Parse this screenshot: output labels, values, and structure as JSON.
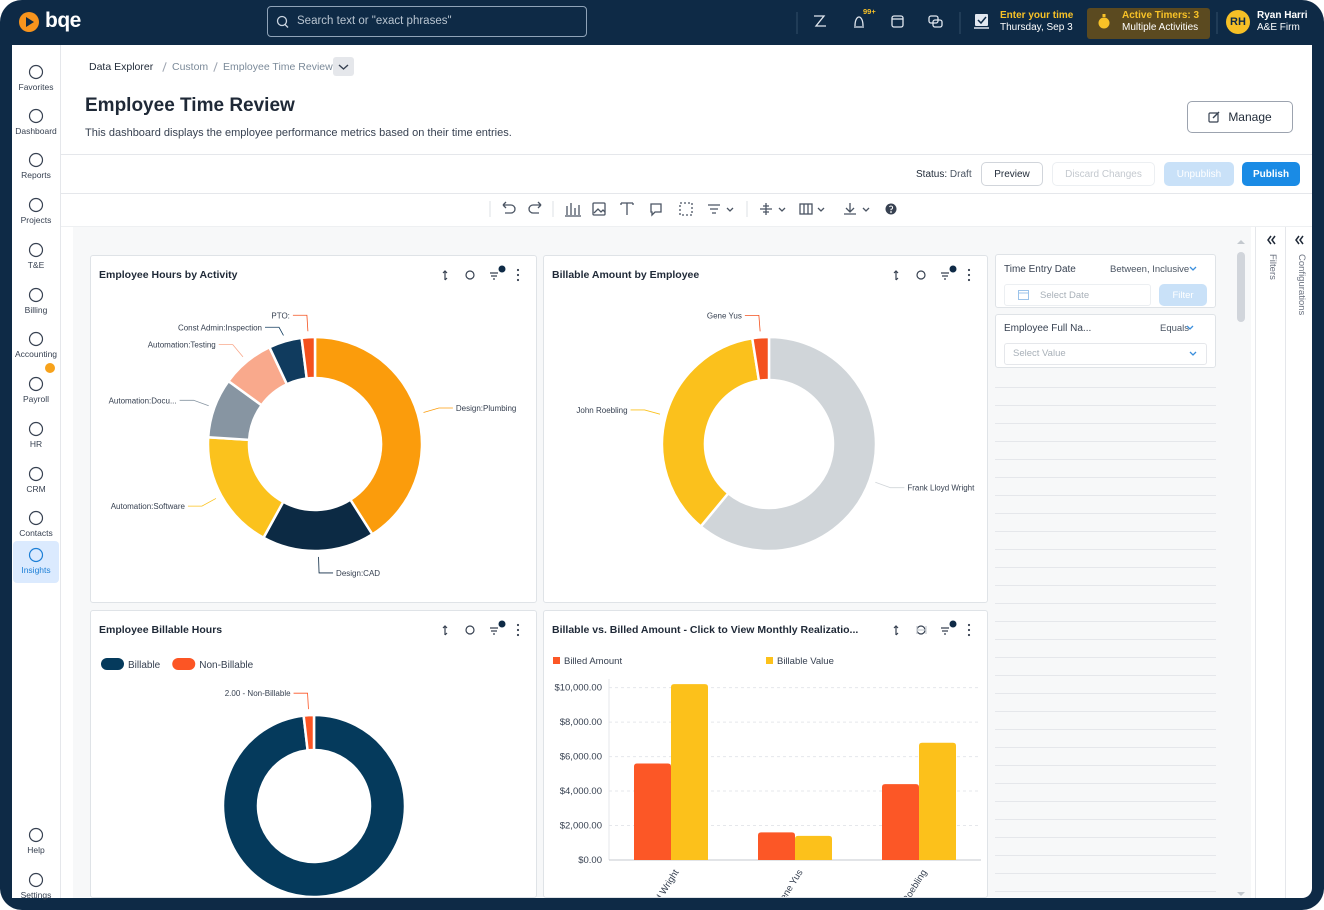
{
  "header": {
    "logo": "bqe",
    "search_placeholder": "Search text or \"exact phrases\"",
    "notification_badge": "99+",
    "time_entry": "Enter your time",
    "date": "Thursday, Sep 3",
    "timers": "Active Timers: 3",
    "timers_detail": "Multiple Activities",
    "avatar": "RH",
    "user_name": "Ryan Harri",
    "firm": "A&E Firm"
  },
  "sidebar": {
    "items": [
      "Favorites",
      "Dashboard",
      "Reports",
      "Projects",
      "T&E",
      "Billing",
      "Accounting",
      "Payroll",
      "HR",
      "CRM",
      "Contacts",
      "Insights"
    ],
    "bottom_items": [
      "Help",
      "Settings"
    ],
    "active": "Insights"
  },
  "breadcrumb": [
    "Data Explorer",
    "Custom",
    "Employee Time Review"
  ],
  "page": {
    "title": "Employee Time Review",
    "description": "This dashboard displays the employee performance metrics based on their time entries.",
    "manage": "Manage"
  },
  "status_bar": {
    "status_label": "Status:",
    "status": "Draft",
    "preview": "Preview",
    "discard": "Discard Changes",
    "unpublish": "Unpublish",
    "publish": "Publish"
  },
  "filters": [
    {
      "label": "Time Entry Date",
      "operator": "Between, Inclusive",
      "placeholder": "Select Date",
      "button": "Filter"
    },
    {
      "label": "Employee Full Na...",
      "operator": "Equals",
      "placeholder": "Select Value"
    }
  ],
  "side_tabs": [
    "Filters",
    "Configurations"
  ],
  "chart_data": [
    {
      "type": "donut",
      "title": "Employee Hours by Activity",
      "categories": [
        "Design:Plumbing",
        "Design:CAD",
        "Automation:Software",
        "Automation:Docu...",
        "Automation:Testing",
        "Const Admin:Inspection",
        "PTO:"
      ],
      "values": [
        41,
        17,
        18,
        9,
        8,
        5,
        2
      ],
      "colors": [
        "#fb9c0c",
        "#0c2a44",
        "#fbc21d",
        "#8795a2",
        "#f9a98c",
        "#103b5e",
        "#f4511e"
      ]
    },
    {
      "type": "donut",
      "title": "Billable Amount by Employee",
      "categories": [
        "Frank Lloyd Wright",
        "John Roebling",
        "Gene Yus"
      ],
      "values": [
        61,
        36.5,
        2.5
      ],
      "colors": [
        "#d0d5d9",
        "#fbc11c",
        "#f4511e"
      ]
    },
    {
      "type": "donut",
      "title": "Employee Billable Hours",
      "categories": [
        "Billable",
        "Non-Billable"
      ],
      "values": [
        108,
        2
      ],
      "value_labels": [
        null,
        "2.00 - Non-Billable"
      ],
      "colors": [
        "#053a5c",
        "#fc5524"
      ],
      "legend": "top-left"
    },
    {
      "type": "bar",
      "title": "Billable vs. Billed Amount - Click to View Monthly Realizatio...",
      "categories": [
        "Frank Lloyd Wright",
        "Gene Yus",
        "John Roebling"
      ],
      "series": [
        {
          "name": "Billed Amount",
          "color": "#fc5726",
          "values": [
            5600,
            1600,
            4400
          ]
        },
        {
          "name": "Billable Value",
          "color": "#fcc11b",
          "values": [
            10200,
            1400,
            6800
          ]
        }
      ],
      "ylim": [
        0,
        10500
      ],
      "yticks": [
        {
          "value": 0,
          "label": "$0.00"
        },
        {
          "value": 2000,
          "label": "$2,000.00"
        },
        {
          "value": 4000,
          "label": "$4,000.00"
        },
        {
          "value": 6000,
          "label": "$6,000.00"
        },
        {
          "value": 8000,
          "label": "$8,000.00"
        },
        {
          "value": 10000,
          "label": "$10,000.00"
        }
      ],
      "grid": true,
      "legend": "top"
    }
  ]
}
